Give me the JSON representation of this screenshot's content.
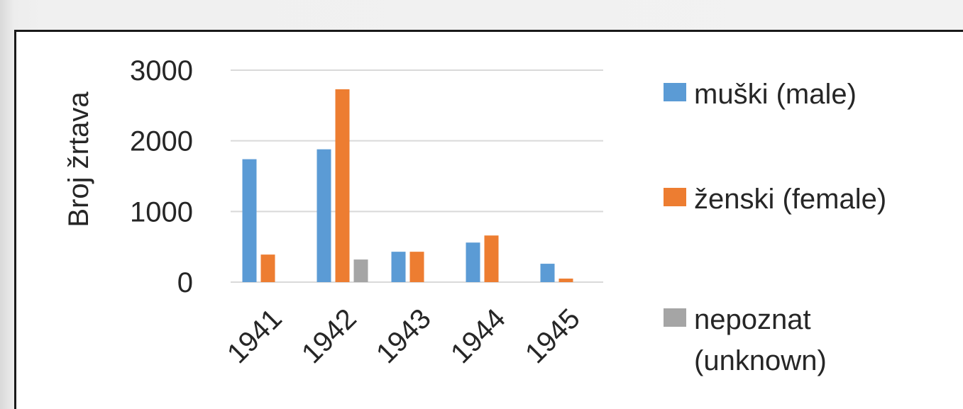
{
  "chart_data": {
    "type": "bar",
    "ylabel": "Broj žrtava",
    "xlabel": "",
    "title": "",
    "ylim": [
      0,
      3000
    ],
    "yticks": [
      0,
      1000,
      2000,
      3000
    ],
    "grid": true,
    "legend_position": "right",
    "categories": [
      "1941",
      "1942",
      "1943",
      "1944",
      "1945"
    ],
    "series": [
      {
        "name": "muški (male)",
        "legend_lines": [
          "muški (male)"
        ],
        "color": "#5b9bd5",
        "values": [
          1740,
          1880,
          430,
          560,
          260
        ]
      },
      {
        "name": "ženski (female)",
        "legend_lines": [
          "ženski (female)"
        ],
        "color": "#ed7d31",
        "values": [
          390,
          2730,
          430,
          660,
          50
        ]
      },
      {
        "name": "nepoznat (unknown)",
        "legend_lines": [
          "nepoznat",
          "(unknown)"
        ],
        "color": "#a5a5a5",
        "values": [
          0,
          320,
          0,
          0,
          0
        ]
      }
    ]
  }
}
